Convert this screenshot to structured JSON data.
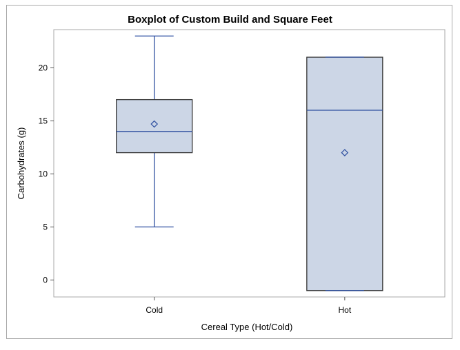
{
  "chart_data": {
    "type": "box",
    "title": "Boxplot of Custom Build and Square Feet",
    "xlabel": "Cereal Type (Hot/Cold)",
    "ylabel": "Carbohydrates (g)",
    "ylim": [
      -1.6,
      23.6
    ],
    "yticks": [
      0,
      5,
      10,
      15,
      20
    ],
    "categories": [
      "Cold",
      "Hot"
    ],
    "boxes": [
      {
        "category": "Cold",
        "whisker_low": 5,
        "q1": 12,
        "median": 14,
        "q3": 17,
        "whisker_high": 23,
        "mean": 14.7
      },
      {
        "category": "Hot",
        "whisker_low": -1,
        "q1": -1,
        "median": 16,
        "q3": 21,
        "whisker_high": 21,
        "mean": 12
      }
    ],
    "grid": false,
    "colors": {
      "box_fill": "#ccd6e6",
      "box_edge": "#333333",
      "line": "#2e4fa0",
      "frame": "#a9a9a9"
    }
  }
}
